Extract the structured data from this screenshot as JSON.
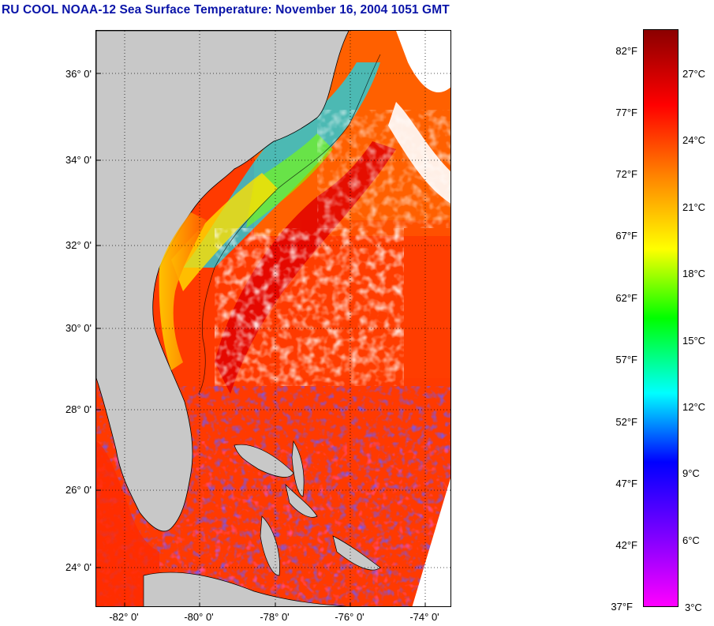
{
  "title": "RU COOL  NOAA-12  Sea Surface Temperature:  November 16, 2004 1051 GMT",
  "map": {
    "lat_labels": [
      "36° 0'",
      "34° 0'",
      "32° 0'",
      "30° 0'",
      "28° 0'",
      "26° 0'",
      "24° 0'"
    ],
    "lon_labels": [
      "-82° 0'",
      "-80° 0'",
      "-78° 0'",
      "-76° 0'",
      "-74° 0'"
    ],
    "land_color": "#c8c8c8",
    "cloud_color": "#ffffff"
  },
  "colorbar": {
    "fahrenheit_labels": [
      "82°F",
      "77°F",
      "72°F",
      "67°F",
      "62°F",
      "57°F",
      "52°F",
      "47°F",
      "42°F",
      "37°F"
    ],
    "celsius_labels": [
      "27°C",
      "24°C",
      "21°C",
      "18°C",
      "15°C",
      "12°C",
      "9°C",
      "6°C",
      "3°C"
    ],
    "colors_top_to_bottom": [
      "#8b0000",
      "#ff0000",
      "#ff8000",
      "#ffff00",
      "#00ff00",
      "#00ffff",
      "#0000ff",
      "#8000ff",
      "#ff00ff"
    ]
  }
}
